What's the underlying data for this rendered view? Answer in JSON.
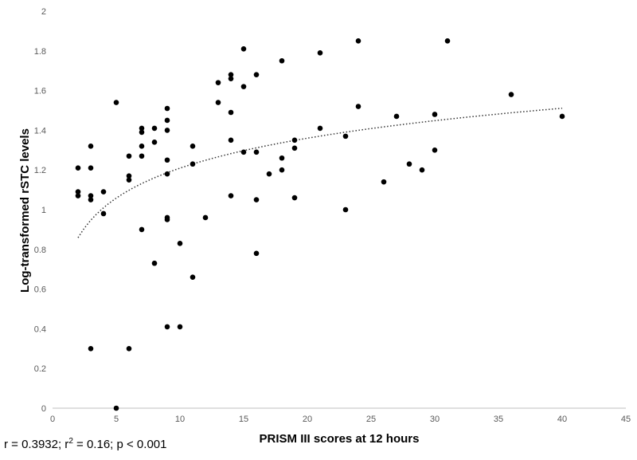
{
  "chart_data": {
    "type": "scatter",
    "title": "",
    "xlabel": "PRISM III scores at 12 hours",
    "ylabel": "Log-transformed rSTC levels",
    "xlim": [
      0,
      45
    ],
    "ylim": [
      0,
      2
    ],
    "x_ticks": [
      "0",
      "5",
      "10",
      "15",
      "20",
      "25",
      "30",
      "35",
      "40",
      "45"
    ],
    "y_ticks": [
      "0",
      "0.2",
      "0.4",
      "0.6",
      "0.8",
      "1",
      "1.2",
      "1.4",
      "1.6",
      "1.8",
      "2"
    ],
    "grid": false,
    "legend": "none",
    "point_color": "#000000",
    "trendline": {
      "type": "logarithmic",
      "style": "dotted",
      "x_range": [
        2,
        40
      ],
      "a": 0.7079,
      "b": 0.2177
    },
    "points": [
      {
        "x": 2,
        "y": 1.21
      },
      {
        "x": 2,
        "y": 1.09
      },
      {
        "x": 2,
        "y": 1.07
      },
      {
        "x": 3,
        "y": 1.32
      },
      {
        "x": 3,
        "y": 1.21
      },
      {
        "x": 3,
        "y": 1.07
      },
      {
        "x": 3,
        "y": 1.05
      },
      {
        "x": 3,
        "y": 0.3
      },
      {
        "x": 4,
        "y": 1.09
      },
      {
        "x": 4,
        "y": 0.98
      },
      {
        "x": 5,
        "y": 1.54
      },
      {
        "x": 5,
        "y": 0.0
      },
      {
        "x": 6,
        "y": 1.27
      },
      {
        "x": 6,
        "y": 1.17
      },
      {
        "x": 6,
        "y": 1.15
      },
      {
        "x": 6,
        "y": 0.3
      },
      {
        "x": 7,
        "y": 1.41
      },
      {
        "x": 7,
        "y": 1.39
      },
      {
        "x": 7,
        "y": 1.32
      },
      {
        "x": 7,
        "y": 1.27
      },
      {
        "x": 7,
        "y": 0.9
      },
      {
        "x": 8,
        "y": 1.41
      },
      {
        "x": 8,
        "y": 1.34
      },
      {
        "x": 8,
        "y": 0.73
      },
      {
        "x": 9,
        "y": 1.51
      },
      {
        "x": 9,
        "y": 1.45
      },
      {
        "x": 9,
        "y": 1.4
      },
      {
        "x": 9,
        "y": 1.25
      },
      {
        "x": 9,
        "y": 1.18
      },
      {
        "x": 9,
        "y": 0.96
      },
      {
        "x": 9,
        "y": 0.95
      },
      {
        "x": 9,
        "y": 0.41
      },
      {
        "x": 10,
        "y": 0.83
      },
      {
        "x": 10,
        "y": 0.41
      },
      {
        "x": 11,
        "y": 1.32
      },
      {
        "x": 11,
        "y": 1.23
      },
      {
        "x": 11,
        "y": 0.66
      },
      {
        "x": 12,
        "y": 0.96
      },
      {
        "x": 13,
        "y": 1.64
      },
      {
        "x": 13,
        "y": 1.54
      },
      {
        "x": 14,
        "y": 1.68
      },
      {
        "x": 14,
        "y": 1.66
      },
      {
        "x": 14,
        "y": 1.49
      },
      {
        "x": 14,
        "y": 1.35
      },
      {
        "x": 14,
        "y": 1.07
      },
      {
        "x": 15,
        "y": 1.81
      },
      {
        "x": 15,
        "y": 1.62
      },
      {
        "x": 15,
        "y": 1.29
      },
      {
        "x": 16,
        "y": 1.68
      },
      {
        "x": 16,
        "y": 1.29
      },
      {
        "x": 16,
        "y": 1.05
      },
      {
        "x": 16,
        "y": 0.78
      },
      {
        "x": 17,
        "y": 1.18
      },
      {
        "x": 18,
        "y": 1.75
      },
      {
        "x": 18,
        "y": 1.26
      },
      {
        "x": 18,
        "y": 1.2
      },
      {
        "x": 19,
        "y": 1.35
      },
      {
        "x": 19,
        "y": 1.31
      },
      {
        "x": 19,
        "y": 1.06
      },
      {
        "x": 21,
        "y": 1.79
      },
      {
        "x": 21,
        "y": 1.41
      },
      {
        "x": 23,
        "y": 1.37
      },
      {
        "x": 23,
        "y": 1.0
      },
      {
        "x": 24,
        "y": 1.85
      },
      {
        "x": 24,
        "y": 1.52
      },
      {
        "x": 26,
        "y": 1.14
      },
      {
        "x": 27,
        "y": 1.47
      },
      {
        "x": 28,
        "y": 1.23
      },
      {
        "x": 29,
        "y": 1.2
      },
      {
        "x": 30,
        "y": 1.48
      },
      {
        "x": 30,
        "y": 1.3
      },
      {
        "x": 31,
        "y": 1.85
      },
      {
        "x": 36,
        "y": 1.58
      },
      {
        "x": 40,
        "y": 1.47
      }
    ]
  },
  "stats": {
    "r_text": "r = 0.3932; r",
    "r2_sup": "2",
    "rest_text": " = 0.16; p < 0.001"
  }
}
